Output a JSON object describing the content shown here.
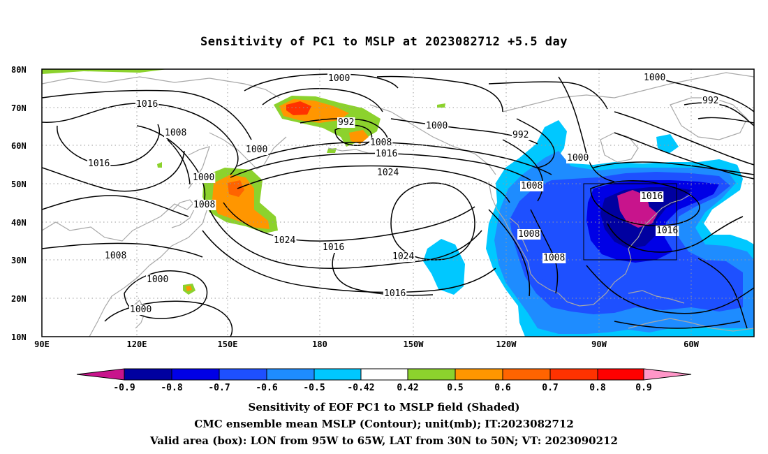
{
  "title": "Sensitivity of PC1 to MSLP at 2023082712 +5.5 day",
  "map": {
    "lat_labels": [
      "80N",
      "70N",
      "60N",
      "50N",
      "40N",
      "30N",
      "20N",
      "10N"
    ],
    "lon_labels": [
      "90E",
      "120E",
      "150E",
      "180",
      "150W",
      "120W",
      "90W",
      "60W"
    ],
    "contour_labels": [
      "1000",
      "1016",
      "1008",
      "1016",
      "1000",
      "1008",
      "1000",
      "1008",
      "1000",
      "1000",
      "992",
      "1008",
      "1016",
      "1024",
      "1024",
      "1016",
      "1024",
      "1016",
      "1000",
      "992",
      "992",
      "1000",
      "1008",
      "1008",
      "1008",
      "1016",
      "1016"
    ],
    "valid_box": {
      "lon_from": "95W",
      "lon_to": "65W",
      "lat_from": "30N",
      "lat_to": "50N"
    },
    "colors": {
      "neg_09": "#c8148c",
      "neg_08": "#0000a0",
      "neg_07": "#0000e6",
      "neg_06": "#1e50ff",
      "neg_05": "#1e8cff",
      "neg_042": "#00c8ff",
      "neutral": "#ffffff",
      "pos_05": "#8cd22d",
      "pos_06": "#ff9600",
      "pos_07": "#ff6400",
      "pos_08": "#ff3200",
      "pos_09": "#ff0000",
      "pos_over": "#ff96c8",
      "coast": "#a8a8a8"
    }
  },
  "colorbar": {
    "labels": [
      "-0.9",
      "-0.8",
      "-0.7",
      "-0.6",
      "-0.5",
      "-0.42",
      "0.42",
      "0.5",
      "0.6",
      "0.7",
      "0.8",
      "0.9"
    ],
    "colors": [
      "#c8148c",
      "#0000a0",
      "#0000e6",
      "#1e50ff",
      "#1e8cff",
      "#00c8ff",
      "#ffffff",
      "#8cd22d",
      "#ff9600",
      "#ff6400",
      "#ff3200",
      "#ff0000",
      "#ff96c8"
    ]
  },
  "captions": {
    "line1": "Sensitivity of EOF PC1 to MSLP field (Shaded)",
    "line2": "CMC ensemble mean MSLP (Contour); unit(mb); IT:2023082712",
    "line3": "Valid area (box): LON from 95W to 65W, LAT from 30N to 50N; VT: 2023090212"
  }
}
